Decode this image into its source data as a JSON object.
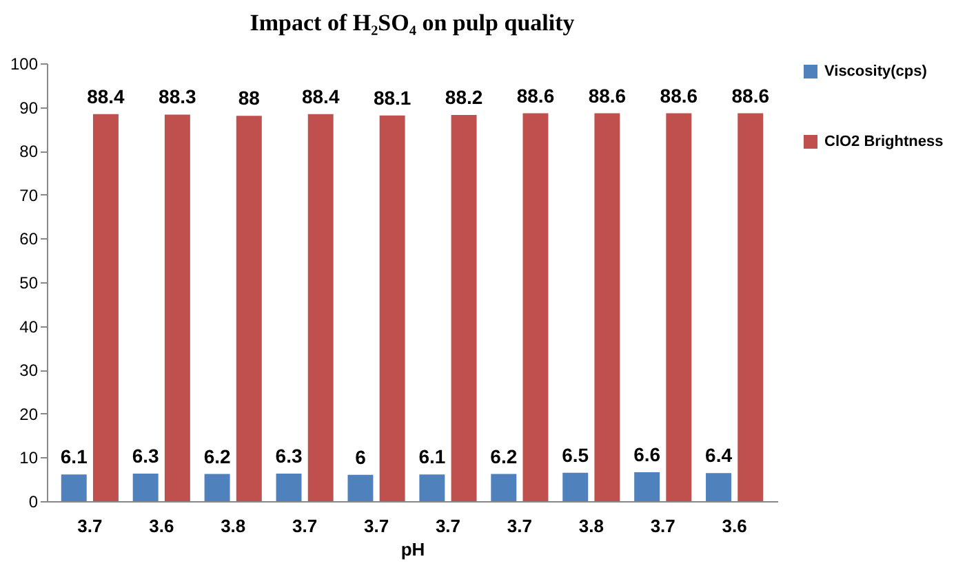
{
  "chart_data": {
    "type": "bar",
    "title": "Impact of H₂SO₄ on pulp quality",
    "xlabel": "pH",
    "categories": [
      "3.7",
      "3.6",
      "3.8",
      "3.7",
      "3.7",
      "3.7",
      "3.7",
      "3.8",
      "3.7",
      "3.6"
    ],
    "series": [
      {
        "name": "Viscosity(cps)",
        "color": "#4f81bd",
        "values": [
          6.1,
          6.3,
          6.2,
          6.3,
          6,
          6.1,
          6.2,
          6.5,
          6.6,
          6.4
        ]
      },
      {
        "name": "ClO2 Brightness",
        "color": "#c0504d",
        "values": [
          88.4,
          88.3,
          88,
          88.4,
          88.1,
          88.2,
          88.6,
          88.6,
          88.6,
          88.6
        ]
      }
    ],
    "ylim": [
      0,
      100
    ],
    "yticks": [
      0,
      10,
      20,
      30,
      40,
      50,
      60,
      70,
      80,
      90,
      100
    ],
    "data_labels": true,
    "legend": "right",
    "grid": false
  }
}
